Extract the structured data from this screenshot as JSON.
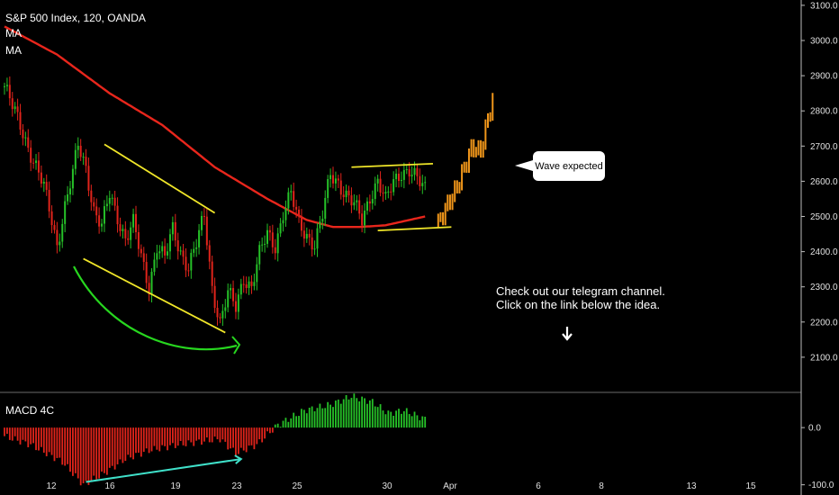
{
  "header": {
    "symbol": "S&P 500 Index, 120, OANDA",
    "ma1": "MA",
    "ma2": "MA"
  },
  "indicator": {
    "name": "MACD 4C"
  },
  "annotations": {
    "callout": "Wave expected",
    "telegram_line1": "Check out our telegram channel.",
    "telegram_line2": "Click on the link below the idea."
  },
  "colors": {
    "bull": "#26c128",
    "bear": "#e0241b",
    "ma": "#e8261c",
    "channel": "#f0e629",
    "projection": "#f0961a",
    "arc": "#27d61f",
    "divergence": "#3fe0c9"
  },
  "chart_data": [
    {
      "type": "candlestick",
      "title": "S&P 500 Index, 120, OANDA",
      "y_ticks": [
        3100.0,
        3000.0,
        2900.0,
        2800.0,
        2700.0,
        2600.0,
        2500.0,
        2400.0,
        2300.0,
        2200.0,
        2100.0
      ],
      "ylim": [
        2000,
        3110
      ],
      "x_ticks": [
        "12",
        "16",
        "19",
        "23",
        "25",
        "30",
        "Apr",
        "6",
        "8",
        "13",
        "15"
      ],
      "close_path": [
        [
          0,
          2870
        ],
        [
          3,
          2810
        ],
        [
          6,
          2760
        ],
        [
          9,
          2700
        ],
        [
          12,
          2640
        ],
        [
          15,
          2580
        ],
        [
          18,
          2490
        ],
        [
          20,
          2420
        ],
        [
          23,
          2530
        ],
        [
          26,
          2620
        ],
        [
          28,
          2700
        ],
        [
          31,
          2640
        ],
        [
          34,
          2520
        ],
        [
          37,
          2470
        ],
        [
          40,
          2560
        ],
        [
          43,
          2500
        ],
        [
          46,
          2440
        ],
        [
          49,
          2480
        ],
        [
          52,
          2380
        ],
        [
          55,
          2300
        ],
        [
          58,
          2420
        ],
        [
          61,
          2380
        ],
        [
          64,
          2460
        ],
        [
          67,
          2400
        ],
        [
          70,
          2360
        ],
        [
          73,
          2420
        ],
        [
          76,
          2500
        ],
        [
          79,
          2300
        ],
        [
          82,
          2200
        ],
        [
          85,
          2280
        ],
        [
          88,
          2240
        ],
        [
          91,
          2330
        ],
        [
          94,
          2300
        ],
        [
          97,
          2390
        ],
        [
          100,
          2450
        ],
        [
          103,
          2420
        ],
        [
          106,
          2510
        ],
        [
          109,
          2560
        ],
        [
          112,
          2480
        ],
        [
          115,
          2450
        ],
        [
          118,
          2420
        ],
        [
          121,
          2500
        ],
        [
          124,
          2620
        ],
        [
          127,
          2600
        ],
        [
          130,
          2560
        ],
        [
          133,
          2530
        ],
        [
          136,
          2490
        ],
        [
          139,
          2560
        ],
        [
          142,
          2600
        ],
        [
          145,
          2540
        ],
        [
          148,
          2600
        ],
        [
          151,
          2630
        ],
        [
          154,
          2630
        ],
        [
          157,
          2600
        ],
        [
          160,
          2580
        ]
      ],
      "moving_average": [
        [
          0,
          3040
        ],
        [
          20,
          2960
        ],
        [
          40,
          2850
        ],
        [
          60,
          2760
        ],
        [
          80,
          2640
        ],
        [
          100,
          2550
        ],
        [
          115,
          2490
        ],
        [
          125,
          2470
        ],
        [
          135,
          2470
        ],
        [
          145,
          2475
        ],
        [
          160,
          2500
        ]
      ],
      "projection_path": [
        [
          165,
          2480
        ],
        [
          169,
          2540
        ],
        [
          172,
          2580
        ],
        [
          175,
          2640
        ],
        [
          178,
          2700
        ],
        [
          181,
          2680
        ],
        [
          184,
          2780
        ],
        [
          186,
          2840
        ]
      ],
      "channels": [
        {
          "from": [
            38,
            2705
          ],
          "to": [
            80,
            2510
          ]
        },
        {
          "from": [
            30,
            2380
          ],
          "to": [
            84,
            2170
          ]
        },
        {
          "from": [
            132,
            2640
          ],
          "to": [
            163,
            2650
          ]
        },
        {
          "from": [
            142,
            2460
          ],
          "to": [
            170,
            2470
          ]
        }
      ]
    },
    {
      "type": "bar",
      "title": "MACD 4C",
      "y_ticks": [
        0.0,
        -100.0
      ],
      "ylim": [
        -110,
        60
      ],
      "histogram_profile": [
        [
          0,
          -15
        ],
        [
          10,
          -30
        ],
        [
          22,
          -60
        ],
        [
          30,
          -100
        ],
        [
          38,
          -80
        ],
        [
          46,
          -55
        ],
        [
          55,
          -40
        ],
        [
          66,
          -30
        ],
        [
          74,
          -25
        ],
        [
          82,
          -20
        ],
        [
          88,
          -45
        ],
        [
          96,
          -30
        ],
        [
          104,
          5
        ],
        [
          114,
          30
        ],
        [
          124,
          40
        ],
        [
          132,
          55
        ],
        [
          140,
          45
        ],
        [
          146,
          25
        ],
        [
          152,
          30
        ],
        [
          160,
          15
        ]
      ],
      "divergence_line": {
        "from": [
          31,
          -95
        ],
        "to": [
          90,
          -55
        ]
      }
    }
  ]
}
